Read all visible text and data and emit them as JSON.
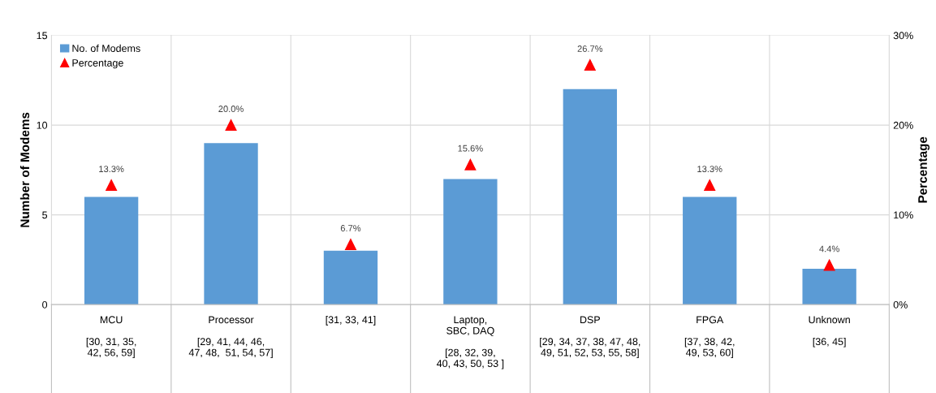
{
  "chart_data": {
    "type": "bar",
    "ylabel": "Number of Modems",
    "y2label": "Percentage",
    "categories": [
      "MCU\n\n[30, 31, 35,\n42, 56, 59]",
      "Processor\n\n[29, 41, 44, 46,\n47, 48,  51, 54, 57]",
      "[31, 33, 41]",
      "Laptop,\nSBC, DAQ\n\n[28, 32, 39,\n40, 43, 50, 53 ]",
      "DSP\n\n[29, 34, 37, 38, 47, 48,\n49, 51, 52, 53, 55, 58]",
      "FPGA\n\n[37, 38, 42,\n49, 53, 60]",
      "Unknown\n\n[36, 45]"
    ],
    "series": [
      {
        "name": "No. of Modems",
        "color": "#5b9bd5",
        "values": [
          6,
          9,
          3,
          7,
          12,
          6,
          2
        ]
      },
      {
        "name": "Percentage",
        "type": "scatter",
        "axis": "y2",
        "color": "#ff0000",
        "marker": "triangle",
        "values": [
          13.3,
          20.0,
          6.7,
          15.6,
          26.7,
          13.3,
          4.4
        ],
        "value_labels": [
          "13.3%",
          "20.0%",
          "6.7%",
          "15.6%",
          "26.7%",
          "13.3%",
          "4.4%"
        ]
      }
    ],
    "ylim": [
      0,
      15
    ],
    "yticks": [
      0,
      5,
      10,
      15
    ],
    "y2lim": [
      0,
      30
    ],
    "y2ticks": [
      {
        "value": 0,
        "label": "0%"
      },
      {
        "value": 10,
        "label": "10%"
      },
      {
        "value": 20,
        "label": "20%"
      },
      {
        "value": 30,
        "label": "30%"
      }
    ],
    "grid": true,
    "legend": "top left"
  }
}
